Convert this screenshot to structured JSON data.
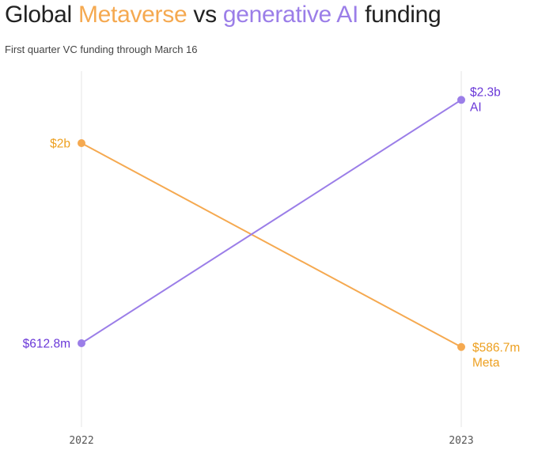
{
  "title": {
    "prefix": "Global ",
    "metaverse": "Metaverse",
    "middle": " vs ",
    "generative_ai": "generative AI",
    "suffix": " funding"
  },
  "subtitle": "First quarter VC funding through March 16",
  "colors": {
    "text": "#222222",
    "subtitle": "#444444",
    "metaverse": "#f5a950",
    "ai": "#9b7ee8",
    "ai_label": "#6a38d8",
    "meta_label": "#eda020",
    "axis": "#e6e6e6",
    "tick": "#555555"
  },
  "chart_data": {
    "type": "line",
    "title": "Global Metaverse vs generative AI funding",
    "subtitle": "First quarter VC funding through March 16",
    "x": [
      "2022",
      "2023"
    ],
    "unit": "USD",
    "series": [
      {
        "name": "Meta",
        "values": [
          2000,
          586.7
        ],
        "value_unit": "millions",
        "labels": [
          "$2b",
          "$586.7m"
        ],
        "end_label": "Meta",
        "color": "#f5a950",
        "label_color": "#eda020"
      },
      {
        "name": "AI",
        "values": [
          612.8,
          2300
        ],
        "value_unit": "millions",
        "labels": [
          "$612.8m",
          "$2.3b"
        ],
        "end_label": "AI",
        "color": "#9b7ee8",
        "label_color": "#6a38d8"
      }
    ],
    "xlabel": "",
    "ylabel": "",
    "grid": false
  }
}
